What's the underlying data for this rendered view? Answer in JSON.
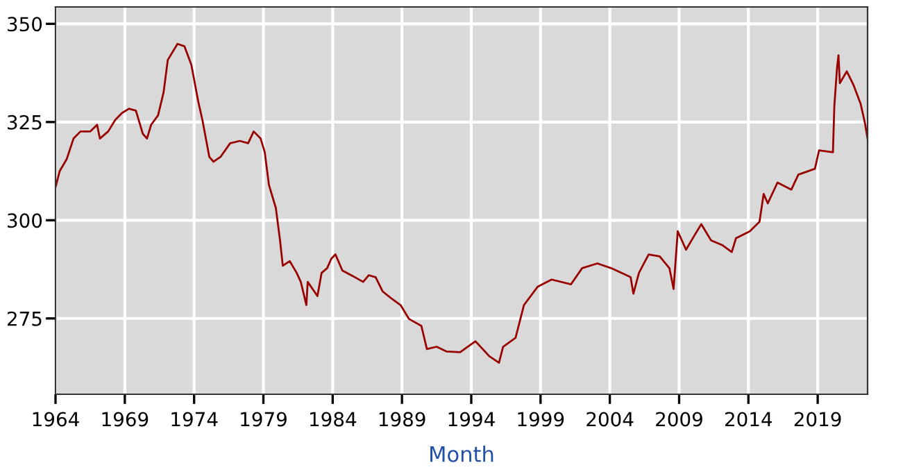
{
  "chart_data": {
    "type": "line",
    "xlabel": "Month",
    "xlim": [
      1964,
      2022.6
    ],
    "ylim": [
      255.7,
      354.3
    ],
    "xticks": [
      1964,
      1969,
      1974,
      1979,
      1984,
      1989,
      1994,
      1999,
      2004,
      2009,
      2014,
      2019
    ],
    "yticks": [
      275,
      300,
      325,
      350
    ],
    "grid": true,
    "marker": "none",
    "line_style": "solid",
    "series": [
      {
        "color": "#990000",
        "x": [
          1964.0,
          1964.3,
          1964.8,
          1965.3,
          1965.8,
          1966.5,
          1967.0,
          1967.2,
          1967.8,
          1968.3,
          1968.8,
          1969.3,
          1969.8,
          1970.3,
          1970.6,
          1970.9,
          1971.4,
          1971.8,
          1972.1,
          1972.8,
          1973.3,
          1973.8,
          1974.3,
          1974.6,
          1975.1,
          1975.4,
          1975.9,
          1976.6,
          1977.3,
          1977.9,
          1978.3,
          1978.8,
          1979.1,
          1979.4,
          1979.9,
          1980.2,
          1980.4,
          1980.9,
          1981.4,
          1981.7,
          1982.1,
          1982.2,
          1982.9,
          1983.2,
          1983.6,
          1983.9,
          1984.2,
          1984.7,
          1985.6,
          1986.2,
          1986.6,
          1987.1,
          1987.6,
          1988.2,
          1988.9,
          1989.5,
          1990.4,
          1990.8,
          1991.5,
          1992.2,
          1993.2,
          1994.3,
          1995.3,
          1996.0,
          1996.3,
          1997.2,
          1997.8,
          1998.8,
          1999.8,
          2001.2,
          2002.0,
          2003.1,
          2004.1,
          2005.5,
          2005.7,
          2006.1,
          2006.8,
          2007.6,
          2008.3,
          2008.6,
          2008.9,
          2009.5,
          2010.1,
          2010.6,
          2011.3,
          2012.1,
          2012.8,
          2013.1,
          2014.1,
          2014.8,
          2015.1,
          2015.4,
          2016.1,
          2017.1,
          2017.6,
          2018.8,
          2019.1,
          2020.1,
          2020.2,
          2020.4,
          2020.5,
          2020.6,
          2021.1,
          2021.6,
          2022.1,
          2022.4,
          2022.6
        ],
        "values": [
          308.4,
          312.5,
          315.5,
          320.8,
          322.6,
          322.6,
          324.3,
          320.8,
          322.6,
          325.5,
          327.3,
          328.4,
          327.9,
          322.0,
          320.8,
          324.3,
          326.7,
          332.6,
          340.8,
          344.9,
          344.3,
          339.6,
          330.2,
          325.5,
          316.1,
          314.9,
          316.1,
          319.6,
          320.2,
          319.6,
          322.6,
          320.8,
          317.3,
          309.0,
          303.1,
          294.9,
          288.4,
          289.6,
          286.6,
          284.3,
          278.4,
          284.3,
          280.7,
          286.6,
          287.8,
          290.2,
          291.3,
          287.2,
          285.5,
          284.3,
          286.0,
          285.5,
          281.9,
          280.2,
          278.4,
          274.9,
          273.1,
          267.2,
          267.8,
          266.6,
          266.4,
          269.2,
          265.4,
          263.7,
          267.8,
          270.1,
          278.4,
          283.1,
          284.9,
          283.7,
          287.8,
          289.0,
          287.8,
          285.5,
          281.3,
          286.6,
          291.3,
          290.8,
          287.8,
          282.5,
          297.2,
          292.5,
          296.1,
          299.0,
          294.9,
          293.7,
          291.9,
          295.4,
          297.2,
          299.6,
          306.7,
          304.3,
          309.6,
          307.8,
          311.6,
          313.1,
          317.8,
          317.3,
          329.0,
          339.0,
          342.0,
          334.9,
          337.9,
          334.3,
          329.6,
          324.9,
          320.8
        ]
      }
    ]
  }
}
